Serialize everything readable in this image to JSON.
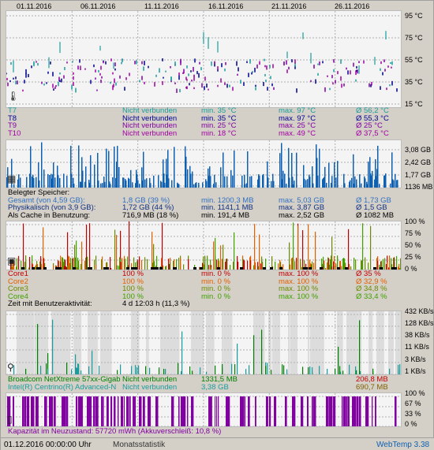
{
  "colors": {
    "blue": "#1060b0",
    "cyan": "#1a9c9c",
    "purple": "#8000a0",
    "darkblue": "#000090",
    "red": "#c00000",
    "orange": "#e06000",
    "olive": "#6a8a00",
    "green": "#008000",
    "gray": "#808080",
    "violet": "#9000a0",
    "teal": "#008080"
  },
  "dates": [
    "01.11.2016",
    "06.11.2016",
    "11.11.2016",
    "16.11.2016",
    "21.11.2016",
    "26.11.2016"
  ],
  "temp": {
    "axis": [
      "95 °C",
      "75 °C",
      "55 °C",
      "35 °C",
      "15 °C"
    ],
    "icon": "thermometer-icon",
    "rows": [
      {
        "name": "T7",
        "status": "Nicht verbunden",
        "min": "min. 35 °C",
        "max": "max. 97 °C",
        "avg": "Ø 56,2 °C",
        "color": "#1a9c9c"
      },
      {
        "name": "T8",
        "status": "Nicht verbunden",
        "min": "min. 35 °C",
        "max": "max. 97 °C",
        "avg": "Ø 55,3 °C",
        "color": "#000090"
      },
      {
        "name": "T9",
        "status": "Nicht verbunden",
        "min": "min. 25 °C",
        "max": "max. 25 °C",
        "avg": "Ø 25 °C",
        "color": "#8000a0"
      },
      {
        "name": "T10",
        "status": "Nicht verbunden",
        "min": "min. 18 °C",
        "max": "max. 49 °C",
        "avg": "Ø 37,5 °C",
        "color": "#a000a0"
      }
    ]
  },
  "mem": {
    "axis": [
      "3,08 GB",
      "2,42 GB",
      "1,77 GB",
      "1136 MB"
    ],
    "icon": "memory-chip-icon",
    "heading": "Belegter Speicher:",
    "rows": [
      {
        "name": "Gesamt (von 4,59 GB):",
        "cur": "1,8 GB (39 %)",
        "min": "min. 1200,3 MB",
        "max": "max. 5,03 GB",
        "avg": "Ø 1,73 GB",
        "color": "#3070c0"
      },
      {
        "name": "Physikalisch (von 3,9 GB):",
        "cur": "1,72 GB (44 %)",
        "min": "min. 1141,1 MB",
        "max": "max. 3,87 GB",
        "avg": "Ø 1,5 GB",
        "color": "#103080"
      },
      {
        "name": "Als Cache in Benutzung:",
        "cur": "716,9 MB (18 %)",
        "min": "min. 191,4 MB",
        "max": "max. 2,52 GB",
        "avg": "Ø 1082 MB",
        "color": "#000000"
      }
    ]
  },
  "cpu": {
    "axis": [
      "100 %",
      "75 %",
      "50 %",
      "25 %",
      "0 %"
    ],
    "icon": "cpu-icon",
    "rows": [
      {
        "name": "Core1",
        "cur": "100 %",
        "min": "min. 0 %",
        "max": "max. 100 %",
        "avg": "Ø 35 %",
        "color": "#c00000"
      },
      {
        "name": "Core2",
        "cur": "100 %",
        "min": "min. 0 %",
        "max": "max. 100 %",
        "avg": "Ø 32,9 %",
        "color": "#e06000"
      },
      {
        "name": "Core3",
        "cur": "100 %",
        "min": "min. 0 %",
        "max": "max. 100 %",
        "avg": "Ø 34,8 %",
        "color": "#6a8a00"
      },
      {
        "name": "Core4",
        "cur": "100 %",
        "min": "min. 0 %",
        "max": "max. 100 %",
        "avg": "Ø 33,4 %",
        "color": "#40a000"
      }
    ],
    "activity_label": "Zeit mit Benutzeraktivität:",
    "activity_value": "4 d 12:03 h (11,3 %)"
  },
  "net": {
    "axis": [
      "432 KB/s",
      "128 KB/s",
      "38 KB/s",
      "11 KB/s",
      "3 KB/s",
      "1 KB/s"
    ],
    "icon": "network-icon",
    "rows": [
      {
        "name": "Broadcom NetXtreme 57xx-Gigab",
        "status": "Nicht verbunden",
        "down": "1331,5 MB",
        "up": "206,8 MB",
        "color": "#008000",
        "upcolor": "#c00000"
      },
      {
        "name": "Intel(R) Centrino(R) Advanced-N",
        "status": "Nicht verbunden",
        "down": "3,38 GB",
        "up": "690,7 MB",
        "color": "#1a9c9c",
        "upcolor": "#806000"
      }
    ]
  },
  "bat": {
    "axis": [
      "100 %",
      "67 %",
      "33 %",
      "0 %"
    ],
    "icon": "battery-icon",
    "capacity": "Kapazität im Neuzustand: 57720 mWh (Akkuverschleiß: 10,8 %)"
  },
  "footer": {
    "date": "01.12.2016 00:00:00 Uhr",
    "mode": "Monatsstatistik",
    "app": "WebTemp 3.38"
  }
}
